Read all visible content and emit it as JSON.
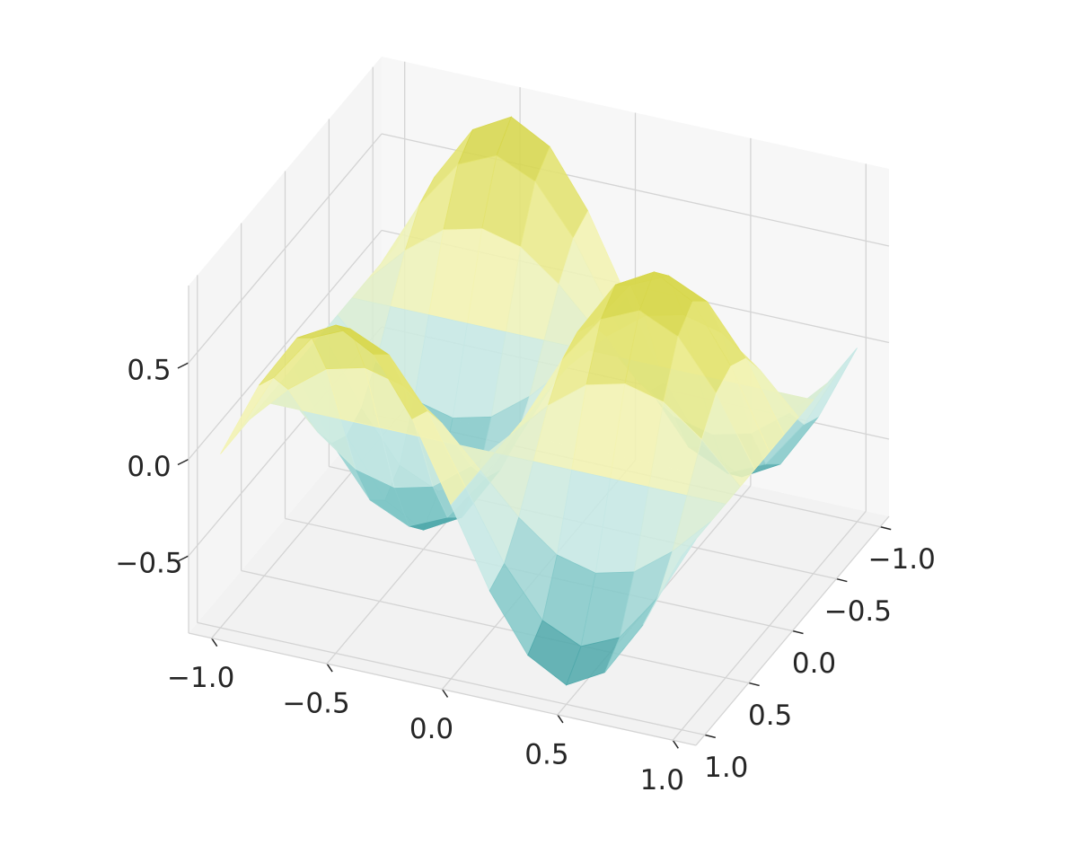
{
  "chart_data": {
    "type": "surface3d",
    "x": [
      -1,
      -0.833,
      -0.667,
      -0.5,
      -0.333,
      -0.167,
      0,
      0.167,
      0.333,
      0.5,
      0.667,
      0.833,
      1
    ],
    "y": [
      -1,
      -0.833,
      -0.667,
      -0.5,
      -0.333,
      -0.167,
      0,
      0.167,
      0.333,
      0.5,
      0.667,
      0.833,
      1
    ],
    "z": [
      [
        0,
        0.4,
        0.69,
        0.8,
        0.69,
        0.4,
        0,
        -0.4,
        -0.69,
        -0.8,
        -0.69,
        -0.4,
        0
      ],
      [
        0,
        0.35,
        0.6,
        0.69,
        0.6,
        0.35,
        0,
        -0.35,
        -0.6,
        -0.69,
        -0.6,
        -0.35,
        0
      ],
      [
        0,
        0.2,
        0.35,
        0.4,
        0.35,
        0.2,
        0,
        -0.2,
        -0.35,
        -0.4,
        -0.35,
        -0.2,
        0
      ],
      [
        0,
        0,
        0,
        0,
        0,
        0,
        0,
        0,
        0,
        0,
        0,
        0,
        0
      ],
      [
        0,
        -0.2,
        -0.35,
        -0.4,
        -0.35,
        -0.2,
        0,
        0.2,
        0.35,
        0.4,
        0.35,
        0.2,
        0
      ],
      [
        0,
        -0.35,
        -0.6,
        -0.69,
        -0.6,
        -0.35,
        0,
        0.35,
        0.6,
        0.69,
        0.6,
        0.35,
        0
      ],
      [
        0,
        -0.4,
        -0.69,
        -0.8,
        -0.69,
        -0.4,
        0,
        0.4,
        0.69,
        0.8,
        0.69,
        0.4,
        0
      ],
      [
        0,
        -0.35,
        -0.6,
        -0.69,
        -0.6,
        -0.35,
        0,
        0.35,
        0.6,
        0.69,
        0.6,
        0.35,
        0
      ],
      [
        0,
        -0.2,
        -0.35,
        -0.4,
        -0.35,
        -0.2,
        0,
        0.2,
        0.35,
        0.4,
        0.35,
        0.2,
        0
      ],
      [
        0,
        0,
        0,
        0,
        0,
        0,
        0,
        0,
        0,
        0,
        0,
        0,
        0
      ],
      [
        0,
        0.2,
        0.35,
        0.4,
        0.35,
        0.2,
        0,
        -0.2,
        -0.35,
        -0.4,
        -0.35,
        -0.2,
        0
      ],
      [
        0,
        0.35,
        0.6,
        0.69,
        0.6,
        0.35,
        0,
        -0.35,
        -0.6,
        -0.69,
        -0.6,
        -0.35,
        0
      ],
      [
        0,
        0.4,
        0.69,
        0.8,
        0.69,
        0.4,
        0,
        -0.4,
        -0.69,
        -0.8,
        -0.69,
        -0.4,
        0
      ]
    ],
    "colormap": [
      "#17858a",
      "#7fc6c6",
      "#c8e9e6",
      "#f3f3b4",
      "#e2e26a",
      "#c9c927"
    ],
    "xlim": [
      -1.1,
      1.1
    ],
    "ylim": [
      -1.1,
      1.1
    ],
    "zlim": [
      -0.9,
      0.9
    ],
    "xticks": [
      {
        "value": -1,
        "label": "−1.0"
      },
      {
        "value": -0.5,
        "label": "−0.5"
      },
      {
        "value": 0,
        "label": "0.0"
      },
      0.5,
      {
        "value": 1,
        "label": "1.0"
      }
    ],
    "yticks": [
      {
        "value": -1,
        "label": "−1.0"
      },
      {
        "value": -0.5,
        "label": "−0.5"
      },
      {
        "value": 0,
        "label": "0.0"
      },
      0.5,
      {
        "value": 1,
        "label": "1.0"
      }
    ],
    "zticks": [
      {
        "value": -0.5,
        "label": "−0.5"
      },
      {
        "value": 0,
        "label": "0.0"
      },
      0.5
    ],
    "grid": true
  }
}
